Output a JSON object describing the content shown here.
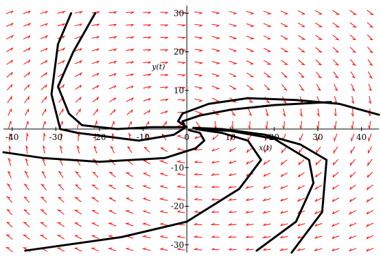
{
  "chart_data": {
    "type": "direction-field-phase-portrait",
    "xlabel": "x(t)",
    "ylabel": "y(t)",
    "xlim": [
      -42,
      44
    ],
    "ylim": [
      -32,
      32
    ],
    "x_ticks": [
      -40,
      -30,
      -20,
      -10,
      0,
      10,
      20,
      30,
      40
    ],
    "x_tick_labels": [
      "-40",
      "-30",
      "-20",
      "-10",
      "0",
      "10",
      "20",
      "30",
      "40"
    ],
    "y_ticks": [
      -30,
      -20,
      -10,
      10,
      20,
      30
    ],
    "y_tick_labels": [
      "-30",
      "-20",
      "-10",
      "10",
      "20",
      "30"
    ],
    "grid": false,
    "colors": {
      "field": "#ff0000",
      "trajectory": "#000000",
      "axes": "#000000"
    },
    "trajectories": [
      {
        "points": [
          [
            -26.5,
            30
          ],
          [
            -29.5,
            22
          ],
          [
            -31,
            9
          ],
          [
            -29,
            0
          ],
          [
            -25,
            -1
          ],
          [
            -18,
            -2
          ],
          [
            -11,
            -3
          ],
          [
            -3,
            -1.5
          ],
          [
            -0.5,
            0.3
          ]
        ]
      },
      {
        "points": [
          [
            -21,
            30
          ],
          [
            -26,
            20
          ],
          [
            -29.5,
            11
          ],
          [
            -27,
            4
          ],
          [
            -24,
            1
          ],
          [
            -16,
            0
          ],
          [
            -8,
            0.5
          ],
          [
            -2,
            0.5
          ],
          [
            -0.5,
            0.5
          ]
        ]
      },
      {
        "points": [
          [
            44,
            3.7
          ],
          [
            35,
            6.5
          ],
          [
            25,
            7.5
          ],
          [
            14,
            8
          ],
          [
            5,
            6.5
          ],
          [
            -1,
            4
          ],
          [
            -2,
            2
          ],
          [
            0,
            0.5
          ]
        ]
      },
      {
        "points": [
          [
            33,
            7
          ],
          [
            20,
            6.2
          ],
          [
            10,
            5
          ],
          [
            3,
            3.5
          ],
          [
            -1,
            2
          ],
          [
            -0.5,
            0.8
          ]
        ]
      },
      {
        "points": [
          [
            -42,
            -6
          ],
          [
            -33,
            -7.5
          ],
          [
            -20,
            -8.5
          ],
          [
            -5,
            -7.5
          ],
          [
            2,
            -5
          ],
          [
            4,
            -3
          ],
          [
            3,
            -1
          ],
          [
            0.5,
            -0.3
          ]
        ]
      },
      {
        "points": [
          [
            -37,
            -31.5
          ],
          [
            -15,
            -28
          ],
          [
            0,
            -24
          ],
          [
            12,
            -15.5
          ],
          [
            17,
            -8
          ],
          [
            14,
            -3
          ],
          [
            8,
            -1
          ],
          [
            2,
            0
          ]
        ]
      },
      {
        "points": [
          [
            16,
            -31.5
          ],
          [
            25,
            -24
          ],
          [
            29,
            -14
          ],
          [
            28,
            -8
          ],
          [
            20,
            -2.5
          ],
          [
            10,
            -0.5
          ],
          [
            3,
            0
          ]
        ]
      },
      {
        "points": [
          [
            24,
            -32
          ],
          [
            31,
            -21.5
          ],
          [
            32,
            -8
          ],
          [
            26,
            -4
          ],
          [
            18,
            -1.5
          ],
          [
            8,
            0
          ],
          [
            1.5,
            0.3
          ]
        ]
      }
    ]
  }
}
